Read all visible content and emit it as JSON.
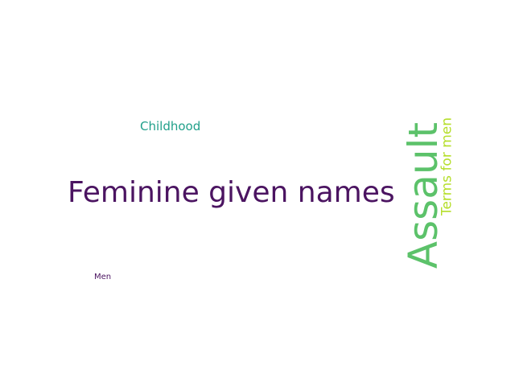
{
  "word_cloud": {
    "words": [
      {
        "id": "feminine",
        "text": "Feminine given names",
        "color": "#4b1461"
      },
      {
        "id": "assault",
        "text": "Assault",
        "color": "#5cc26a"
      },
      {
        "id": "terms",
        "text": "Terms for men",
        "color": "#b5de2b"
      },
      {
        "id": "childhood",
        "text": "Childhood",
        "color": "#21a08a"
      },
      {
        "id": "men",
        "text": "Men",
        "color": "#4b1461"
      }
    ]
  }
}
